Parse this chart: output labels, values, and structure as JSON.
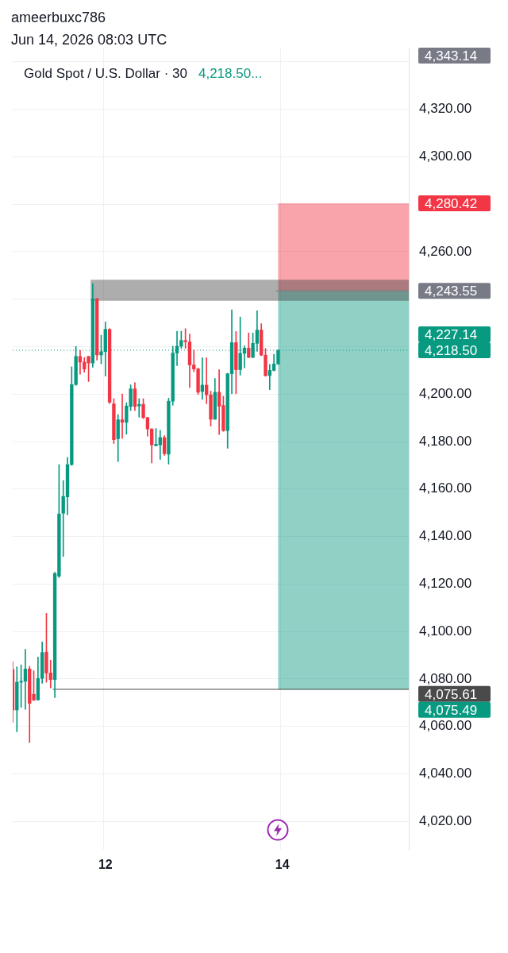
{
  "chart_data": {
    "type": "candlestick",
    "title": "Gold Spot / U.S. Dollar · 30",
    "subtitle": "4,218.50...",
    "annotations": [
      "ameerbuxc786",
      "Jun 14, 2026 08:03 UTC",
      "4,343.14",
      "4,227.14"
    ],
    "categories": [
      null,
      null,
      null,
      null,
      null,
      null,
      null,
      null,
      null,
      null,
      null,
      null,
      null,
      null,
      null,
      null,
      null,
      null,
      null,
      null,
      null,
      null,
      "12",
      null,
      null,
      null,
      null,
      null,
      null,
      null,
      null,
      null,
      null,
      null,
      null,
      null,
      null,
      null,
      null,
      null,
      null,
      null,
      null,
      null,
      null,
      null,
      null,
      null,
      null,
      null,
      null,
      null,
      null,
      null,
      null,
      null,
      null,
      null,
      null,
      null,
      null,
      null,
      null,
      null,
      "14",
      null,
      null,
      null,
      null,
      null,
      null,
      null,
      null,
      null,
      null,
      null,
      null,
      null,
      null,
      null,
      null,
      null,
      null,
      null,
      null,
      null,
      null,
      null,
      null,
      null,
      null,
      null,
      null,
      null,
      null
    ],
    "ohlc": [
      [
        4084.0,
        4087.2,
        4061.7,
        4066.9
      ],
      [
        4066.9,
        4085.1,
        4057.7,
        4078.6
      ],
      [
        4078.6,
        4085.9,
        4068.0,
        4079.0
      ],
      [
        4079.0,
        4092.5,
        4067.2,
        4084.2
      ],
      [
        4084.2,
        4085.3,
        4053.2,
        4069.7
      ],
      [
        4073.5,
        4083.4,
        4070.8,
        4071.1
      ],
      [
        4071.1,
        4089.2,
        4071.1,
        4080.2
      ],
      [
        4080.2,
        4095.6,
        4078.1,
        4091.1
      ],
      [
        4091.3,
        4107.6,
        4078.6,
        4082.5
      ],
      [
        4082.5,
        4087.9,
        4076.2,
        4079.7
      ],
      [
        4079.7,
        4124.9,
        4072.1,
        4124.4
      ],
      [
        4123.3,
        4170.3,
        4122.7,
        4149.5
      ],
      [
        4149.8,
        4163.6,
        4131.6,
        4156.9
      ],
      [
        4156.7,
        4173.4,
        4149.2,
        4170.3
      ],
      [
        4170.3,
        4211.5,
        4170.0,
        4204.0
      ],
      [
        4204.0,
        4220.1,
        4203.7,
        4215.9
      ],
      [
        4215.9,
        4218.5,
        4208.4,
        4213.5
      ],
      [
        4213.5,
        4215.4,
        4209.2,
        4210.6
      ],
      [
        4215.9,
        4215.9,
        4205.3,
        4213.1
      ],
      [
        4213.1,
        4246.6,
        4211.3,
        4240.1
      ],
      [
        4240.1,
        4240.4,
        4214.3,
        4216.5
      ],
      [
        4216.5,
        4224.8,
        4212.8,
        4217.9
      ],
      [
        4217.9,
        4230.4,
        4207.6,
        4227.3
      ],
      [
        4227.3,
        4227.6,
        4196.0,
        4196.6
      ],
      [
        4195.9,
        4198.1,
        4179.2,
        4180.8
      ],
      [
        4181.2,
        4191.4,
        4171.6,
        4189.2
      ],
      [
        4189.2,
        4200.1,
        4181.4,
        4188.1
      ],
      [
        4188.1,
        4196.4,
        4183.1,
        4195.0
      ],
      [
        4194.8,
        4203.9,
        4193.1,
        4202.2
      ],
      [
        4202.2,
        4204.8,
        4193.1,
        4194.8
      ],
      [
        4195.0,
        4198.1,
        4190.3,
        4195.7
      ],
      [
        4195.7,
        4198.1,
        4189.7,
        4190.1
      ],
      [
        4190.1,
        4190.3,
        4182.3,
        4185.3
      ],
      [
        4185.3,
        4185.5,
        4171.0,
        4178.6
      ],
      [
        4178.3,
        4185.5,
        4178.1,
        4178.9
      ],
      [
        4178.6,
        4184.7,
        4172.5,
        4181.7
      ],
      [
        4181.7,
        4182.5,
        4174.2,
        4174.9
      ],
      [
        4174.7,
        4198.3,
        4170.5,
        4197.0
      ],
      [
        4197.0,
        4220.2,
        4195.3,
        4217.3
      ],
      [
        4217.3,
        4226.5,
        4212.0,
        4220.2
      ],
      [
        4220.2,
        4226.5,
        4219.3,
        4222.6
      ],
      [
        4222.6,
        4227.6,
        4219.3,
        4222.1
      ],
      [
        4222.0,
        4225.3,
        4202.8,
        4212.3
      ],
      [
        4212.3,
        4218.6,
        4209.4,
        4210.6
      ],
      [
        4210.6,
        4211.0,
        4199.9,
        4200.8
      ],
      [
        4201.1,
        4215.3,
        4197.8,
        4203.8
      ],
      [
        4203.8,
        4215.3,
        4196.0,
        4199.7
      ],
      [
        4199.7,
        4201.3,
        4186.5,
        4189.4
      ],
      [
        4189.4,
        4206.6,
        4189.4,
        4200.8
      ],
      [
        4200.8,
        4210.3,
        4183.0,
        4194.9
      ],
      [
        4195.2,
        4199.1,
        4184.3,
        4184.6
      ],
      [
        4184.6,
        4208.8,
        4177.2,
        4208.6
      ],
      [
        4208.6,
        4235.5,
        4200.2,
        4221.7
      ],
      [
        4221.7,
        4226.4,
        4200.2,
        4210.3
      ],
      [
        4210.3,
        4232.5,
        4208.0,
        4217.2
      ],
      [
        4217.2,
        4220.3,
        4211.1,
        4219.4
      ],
      [
        4219.4,
        4225.8,
        4215.3,
        4215.5
      ],
      [
        4215.5,
        4225.8,
        4215.3,
        4221.4
      ],
      [
        4221.4,
        4235.1,
        4218.0,
        4227.0
      ],
      [
        4227.0,
        4229.7,
        4216.2,
        4216.4
      ],
      [
        4216.4,
        4219.2,
        4207.5,
        4207.8
      ],
      [
        4207.8,
        4212.5,
        4201.9,
        4210.0
      ],
      [
        4210.0,
        4216.7,
        4209.7,
        4212.7
      ],
      [
        4212.7,
        4218.6,
        4212.5,
        4218.5
      ],
      null,
      null,
      null,
      null,
      null,
      null,
      null,
      null,
      null,
      null,
      null,
      null,
      null,
      null,
      null,
      null,
      null,
      null,
      null,
      null,
      null,
      null,
      null,
      null,
      null,
      null,
      null,
      null,
      null,
      null,
      null
    ],
    "colors": [
      "#f23645",
      "#089981",
      "#089981",
      "#089981",
      "#f23645",
      "#f23645",
      "#089981",
      "#089981",
      "#f23645",
      "#f23645",
      "#089981",
      "#089981",
      "#089981",
      "#089981",
      "#089981",
      "#089981",
      "#f23645",
      "#f23645",
      "#f23645",
      "#089981",
      "#f23645",
      "#089981",
      "#089981",
      "#f23645",
      "#f23645",
      "#089981",
      "#f23645",
      "#089981",
      "#089981",
      "#f23645",
      "#089981",
      "#f23645",
      "#f23645",
      "#f23645",
      "#089981",
      "#089981",
      "#f23645",
      "#089981",
      "#089981",
      "#089981",
      "#089981",
      "#f23645",
      "#f23645",
      "#f23645",
      "#f23645",
      "#089981",
      "#f23645",
      "#f23645",
      "#089981",
      "#f23645",
      "#f23645",
      "#089981",
      "#089981",
      "#f23645",
      "#089981",
      "#089981",
      "#f23645",
      "#089981",
      "#089981",
      "#f23645",
      "#f23645",
      "#089981",
      "#089981",
      "#089981",
      null,
      null,
      null,
      null,
      null,
      null,
      null,
      null,
      null,
      null,
      null,
      null,
      null,
      null,
      null,
      null,
      null,
      null,
      null,
      null,
      null,
      null,
      null,
      null,
      null,
      null,
      null,
      null,
      null,
      null,
      null
    ],
    "ylim": [
      4008,
      4346
    ],
    "yticks": [
      {
        "value": 4020,
        "label": "4,020.00"
      },
      {
        "value": 4040,
        "label": "4,040.00"
      },
      {
        "value": 4060,
        "label": "4,060.00"
      },
      {
        "value": 4080,
        "label": "4,080.00"
      },
      {
        "value": 4100,
        "label": "4,100.00"
      },
      {
        "value": 4120,
        "label": "4,120.00"
      },
      {
        "value": 4140,
        "label": "4,140.00"
      },
      {
        "value": 4160,
        "label": "4,160.00"
      },
      {
        "value": 4180,
        "label": "4,180.00"
      },
      {
        "value": 4200,
        "label": "4,200.00"
      },
      {
        "value": 4220,
        "label": null
      },
      {
        "value": 4240,
        "label": null
      },
      {
        "value": 4260,
        "label": "4,260.00"
      },
      {
        "value": 4280,
        "label": null
      },
      {
        "value": 4300,
        "label": "4,300.00"
      },
      {
        "value": 4320,
        "label": "4,320.00"
      },
      {
        "value": 4340,
        "label": null
      }
    ],
    "grid": true,
    "ref_lines": [
      {
        "axis": "y",
        "value": 4218.5,
        "label": "4,218.50",
        "color": "#089981",
        "line_style": "dotted"
      },
      {
        "axis": "y",
        "value": 4075.61,
        "label": "4,075.61",
        "color": "#4a4a4a",
        "line_style": "solid"
      },
      {
        "axis": "y",
        "value": 4243.55,
        "label": "4,243.55",
        "color": "#787b86",
        "line_style": "solid"
      }
    ],
    "bands": [
      {
        "axis": "y",
        "from": 4243.55,
        "to": 4280.42,
        "label": "4,280.42",
        "color": "#f23645"
      },
      {
        "axis": "y",
        "from": 4243.55,
        "to": 4075.49,
        "label": "4,075.49",
        "color": "#089981"
      },
      {
        "axis": "y",
        "from": 4239.3,
        "to": 4248.2,
        "color": "#4a4a4a"
      }
    ]
  }
}
